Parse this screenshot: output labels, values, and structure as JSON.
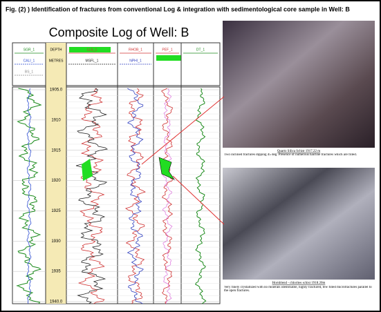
{
  "header": {
    "title": "Fig. (2) ) Identification of fractures from conventional Log & integration with sedimentological core sample in Well: B"
  },
  "log": {
    "title": "Composite Log of Well: B",
    "tracks": [
      {
        "curves": [
          "SGR_1",
          "CALI_1",
          "BS_1"
        ]
      },
      {
        "curves": [
          "DEPTH",
          "METRES"
        ]
      },
      {
        "curves": [
          "LLS_1",
          "MSFL_1"
        ]
      },
      {
        "curves": [
          "RHOB_1",
          "NPHI_1"
        ]
      },
      {
        "curves": [
          "PEF_1"
        ]
      },
      {
        "curves": [
          "DT_1"
        ]
      }
    ],
    "depths": [
      "1905.0",
      "1910",
      "1915",
      "1920",
      "1925",
      "1930",
      "1935",
      "1940.0"
    ]
  },
  "samples": [
    {
      "title": "Quartz Silica Schist 1917.22 m",
      "description": "Two inclined fractures dipping 45 deg. Presence of numerous hairline fractures which are filled."
    },
    {
      "title": "Hornblend - chlorites schist 1918.20m",
      "description": "Very finely crystallized with no minerals identifiable, highly fractured, few filled microfractures parallel to the open fractures."
    }
  ]
}
